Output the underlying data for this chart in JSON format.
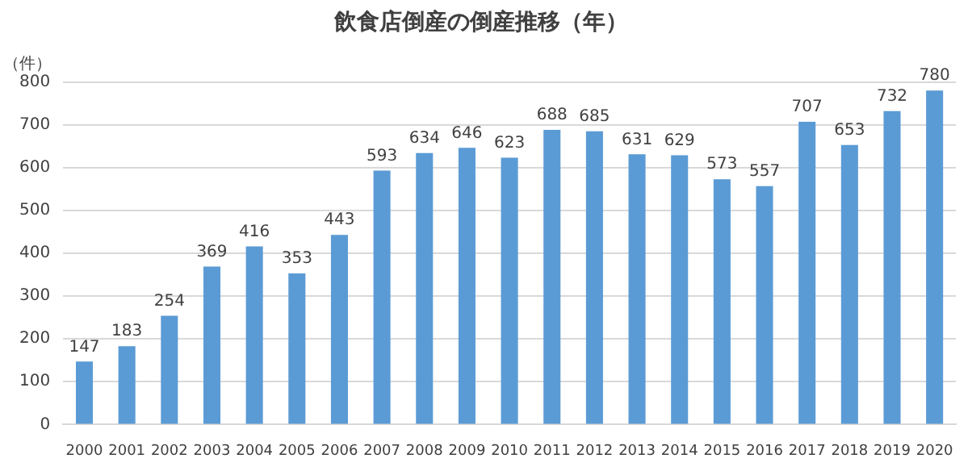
{
  "chart_data": {
    "type": "bar",
    "title": "飲食店倒産の倒産推移（年）",
    "ylabel": "（件）",
    "categories": [
      "2000",
      "2001",
      "2002",
      "2003",
      "2004",
      "2005",
      "2006",
      "2007",
      "2008",
      "2009",
      "2010",
      "2011",
      "2012",
      "2013",
      "2014",
      "2015",
      "2016",
      "2017",
      "2018",
      "2019",
      "2020"
    ],
    "values": [
      147,
      183,
      254,
      369,
      416,
      353,
      443,
      593,
      634,
      646,
      623,
      688,
      685,
      631,
      629,
      573,
      557,
      707,
      653,
      732,
      780
    ],
    "color": "#5b9bd5",
    "ylim": [
      0,
      800
    ],
    "yticks": [
      0,
      100,
      200,
      300,
      400,
      500,
      600,
      700,
      800
    ],
    "grid": "y",
    "data_labels": true,
    "legend": false
  }
}
